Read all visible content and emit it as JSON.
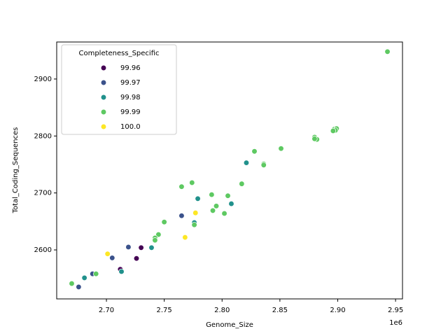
{
  "chart_data": {
    "type": "scatter",
    "xlabel": "Genome_Size",
    "ylabel": "Total_Coding_Sequences",
    "x_offset_label": "1e6",
    "legend_title": "Completeness_Specific",
    "legend_loc": "upper left",
    "xlim": [
      2.657,
      2.956
    ],
    "ylim": [
      2514,
      2965
    ],
    "xticks": [
      {
        "value": 2.7,
        "label": "2.70"
      },
      {
        "value": 2.75,
        "label": "2.75"
      },
      {
        "value": 2.8,
        "label": "2.80"
      },
      {
        "value": 2.85,
        "label": "2.85"
      },
      {
        "value": 2.9,
        "label": "2.90"
      },
      {
        "value": 2.95,
        "label": "2.95"
      }
    ],
    "yticks": [
      2600,
      2700,
      2800,
      2900
    ],
    "series": [
      {
        "name": "99.96",
        "color": "#440154",
        "x": [
          2.712,
          2.73,
          2.726
        ],
        "values": [
          2566,
          2604,
          2585
        ]
      },
      {
        "name": "99.97",
        "color": "#3b528b",
        "x": [
          2.676,
          2.705,
          2.719,
          2.765,
          2.776,
          2.688
        ],
        "values": [
          2535,
          2586,
          2605,
          2660,
          2647,
          2558
        ]
      },
      {
        "name": "99.98",
        "color": "#21918c",
        "x": [
          2.681,
          2.713,
          2.739,
          2.779,
          2.808,
          2.821,
          2.776
        ],
        "values": [
          2551,
          2562,
          2604,
          2690,
          2681,
          2753,
          2648
        ]
      },
      {
        "name": "99.99",
        "color": "#5ec962",
        "x": [
          2.943,
          2.897,
          2.899,
          2.898,
          2.896,
          2.88,
          2.882,
          2.88,
          2.851,
          2.828,
          2.836,
          2.836,
          2.817,
          2.805,
          2.791,
          2.795,
          2.792,
          2.802,
          2.774,
          2.765,
          2.75,
          2.745,
          2.742,
          2.742,
          2.776,
          2.691,
          2.67
        ],
        "values": [
          2948,
          2812,
          2813,
          2810,
          2809,
          2798,
          2794,
          2795,
          2778,
          2773,
          2751,
          2749,
          2716,
          2695,
          2697,
          2677,
          2669,
          2664,
          2718,
          2711,
          2649,
          2627,
          2621,
          2617,
          2644,
          2558,
          2541
        ]
      },
      {
        "name": "100.0",
        "color": "#fde725",
        "x": [
          2.701,
          2.768,
          2.777
        ],
        "values": [
          2593,
          2622,
          2665
        ]
      }
    ]
  }
}
